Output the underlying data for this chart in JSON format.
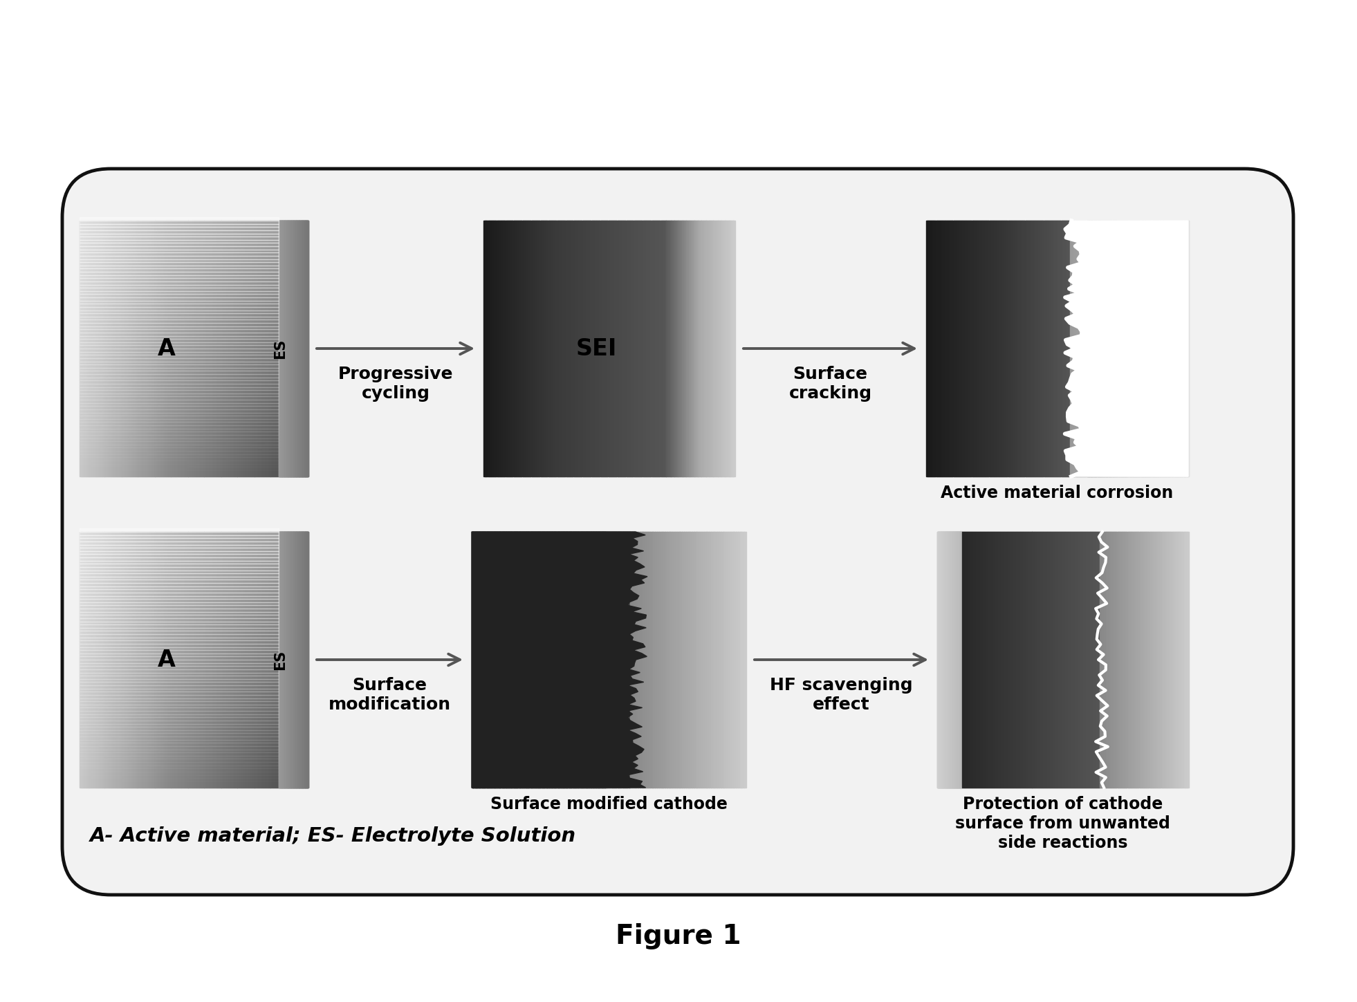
{
  "background_color": "#ffffff",
  "outer_box_facecolor": "#f2f2f2",
  "outer_box_edgecolor": "#111111",
  "figure_title": "Figure 1",
  "legend_text": "A- Active material; ES- Electrolyte Solution",
  "row1": {
    "arrow1_label": "Progressive\ncycling",
    "arrow2_label": "Surface\ncracking",
    "panel2_label": "SEI",
    "panel3_caption": "Active material corrosion"
  },
  "row2": {
    "arrow1_label": "Surface\nmodification",
    "arrow2_label": "HF scavenging\neffect",
    "panel2_caption": "Surface modified cathode",
    "panel3_caption": "Protection of cathode\nsurface from unwanted\nside reactions"
  }
}
